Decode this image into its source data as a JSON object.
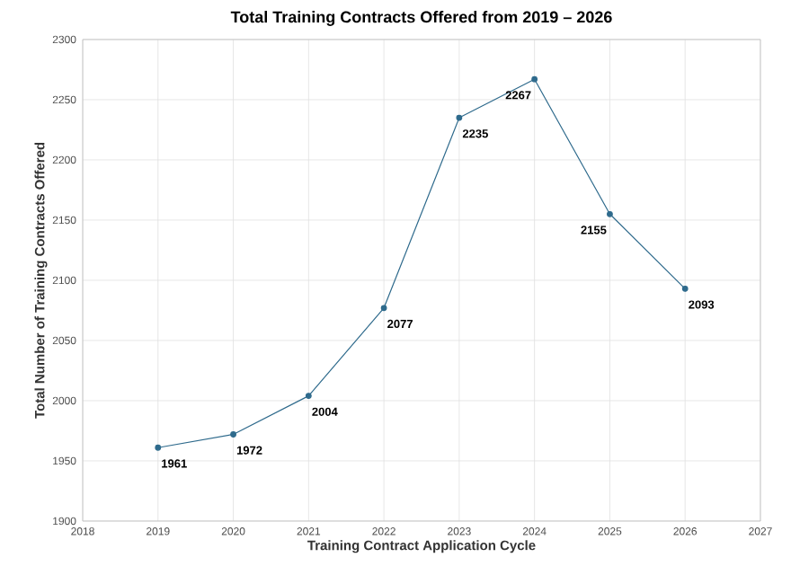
{
  "chart_data": {
    "type": "line",
    "title": "Total Training Contracts Offered from 2019 – 2026",
    "xlabel": "Training Contract Application Cycle",
    "ylabel": "Total Number of Training Contracts Offered",
    "x": [
      2019,
      2020,
      2021,
      2022,
      2023,
      2024,
      2025,
      2026
    ],
    "series": [
      {
        "color": "#2e6a8c",
        "values": [
          1961,
          1972,
          2004,
          2077,
          2235,
          2267,
          2155,
          2093
        ]
      }
    ],
    "xlim": [
      2018,
      2027
    ],
    "xticks": [
      2018,
      2019,
      2020,
      2021,
      2022,
      2023,
      2024,
      2025,
      2026,
      2027
    ],
    "ylim": [
      1900,
      2300
    ],
    "yticks": [
      1900,
      1950,
      2000,
      2050,
      2100,
      2150,
      2200,
      2250,
      2300
    ],
    "grid": true,
    "marker": "circle",
    "line_style": "solid",
    "data_labels": true
  }
}
